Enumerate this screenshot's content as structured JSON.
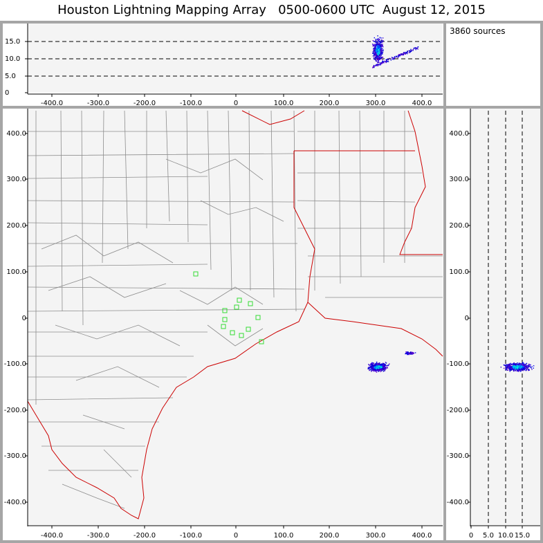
{
  "title": "Houston Lightning Mapping Array   0500-0600 UTC  August 12, 2015",
  "sources_label": "3860 sources",
  "axes": {
    "top_y_ticks": [
      "15.0",
      "10.0",
      "5.0",
      "0"
    ],
    "top_x_ticks": [
      "-400.0",
      "-300.0",
      "-200.0",
      "-100.0",
      "0",
      "100.0",
      "200.0",
      "300.0",
      "400.0"
    ],
    "map_x_ticks": [
      "-400.0",
      "-300.0",
      "-200.0",
      "-100.0",
      "0",
      "100.0",
      "200.0",
      "300.0",
      "400.0"
    ],
    "map_y_ticks": [
      "400.0",
      "300.0",
      "200.0",
      "100.0",
      "0",
      "-100.0",
      "-200.0",
      "-300.0",
      "-400.0"
    ],
    "side_y_ticks": [
      "400.0",
      "300.0",
      "200.0",
      "100.0",
      "0",
      "-100.0",
      "-200.0",
      "-300.0",
      "-400.0"
    ],
    "side_x_ticks": [
      "0",
      "5.0",
      "10.0",
      "15.0"
    ]
  },
  "colors": {
    "panel_border": "#a6a6a6",
    "plot_bg": "#f4f4f4",
    "county_lines": "#8c8c8c",
    "state_lines": "#cc0000",
    "stations": "#33dd33",
    "sources_low": "#0000cc",
    "sources_high": "#00ffcc"
  }
}
